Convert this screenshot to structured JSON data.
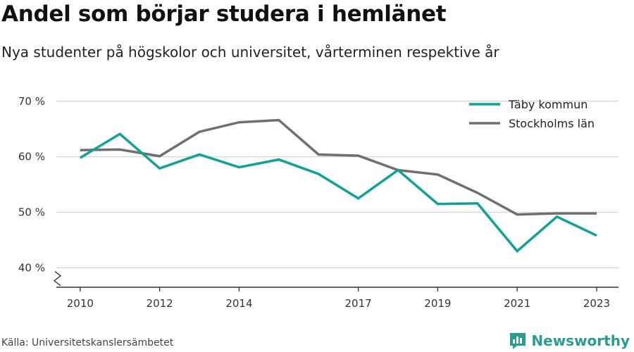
{
  "header": {
    "title": "Andel som börjar studera i hemlänet",
    "subtitle": "Nya studenter på högskolor och universitet, vårterminen respektive år"
  },
  "footer": {
    "source": "Källa: Universitetskanslersämbetet",
    "brand": "Newsworthy",
    "brand_icon": "bar-chart-logo-icon"
  },
  "colors": {
    "taby": "#0fa394",
    "stockholm": "#6f6e73",
    "grid": "#d9d9d9",
    "axis": "#333333",
    "brand": "#2a9d8f"
  },
  "chart_data": {
    "type": "line",
    "x": [
      2010,
      2011,
      2012,
      2013,
      2014,
      2015,
      2016,
      2017,
      2018,
      2019,
      2020,
      2021,
      2022,
      2023
    ],
    "x_tick_values": [
      2010,
      2012,
      2014,
      2017,
      2019,
      2021,
      2023
    ],
    "x_tick_labels": [
      "2010",
      "2012",
      "2014",
      "2017",
      "2019",
      "2021",
      "2023"
    ],
    "y_tick_values": [
      40,
      50,
      60,
      70
    ],
    "y_tick_labels": [
      "40 %",
      "50 %",
      "60 %",
      "70 %"
    ],
    "ylim": [
      36.5,
      72
    ],
    "xlim": [
      2009.4,
      2023.55
    ],
    "axis_break": true,
    "grid": true,
    "legend_position": "top-right",
    "series": [
      {
        "name": "Täby kommun",
        "color": "#0fa394",
        "values": [
          59.8,
          64.1,
          57.9,
          60.4,
          58.1,
          59.5,
          56.9,
          52.5,
          57.6,
          51.5,
          51.6,
          43.0,
          49.2,
          45.8
        ]
      },
      {
        "name": "Stockholms län",
        "color": "#6f6e73",
        "values": [
          61.2,
          61.3,
          60.1,
          64.5,
          66.2,
          66.6,
          60.4,
          60.2,
          57.6,
          56.8,
          53.5,
          49.6,
          49.8,
          49.8
        ]
      }
    ]
  }
}
